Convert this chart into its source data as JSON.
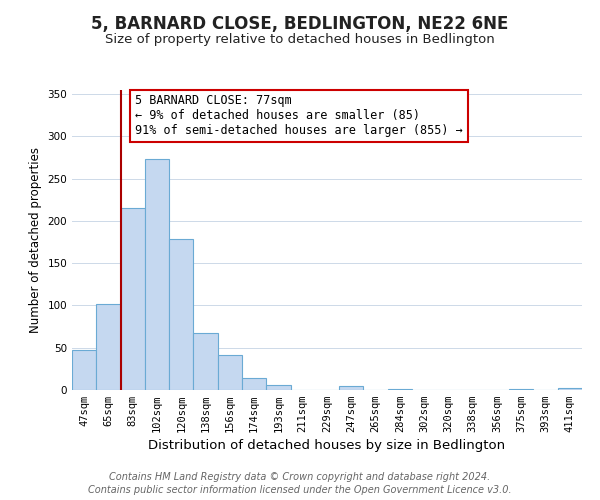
{
  "title": "5, BARNARD CLOSE, BEDLINGTON, NE22 6NE",
  "subtitle": "Size of property relative to detached houses in Bedlington",
  "xlabel": "Distribution of detached houses by size in Bedlington",
  "ylabel": "Number of detached properties",
  "bar_labels": [
    "47sqm",
    "65sqm",
    "83sqm",
    "102sqm",
    "120sqm",
    "138sqm",
    "156sqm",
    "174sqm",
    "193sqm",
    "211sqm",
    "229sqm",
    "247sqm",
    "265sqm",
    "284sqm",
    "302sqm",
    "320sqm",
    "338sqm",
    "356sqm",
    "375sqm",
    "393sqm",
    "411sqm"
  ],
  "bar_values": [
    47,
    102,
    215,
    273,
    179,
    68,
    41,
    14,
    6,
    0,
    0,
    5,
    0,
    1,
    0,
    0,
    0,
    0,
    1,
    0,
    2
  ],
  "bar_color": "#c5d8f0",
  "bar_edge_color": "#6aaad4",
  "vline_color": "#aa0000",
  "annotation_line1": "5 BARNARD CLOSE: 77sqm",
  "annotation_line2": "← 9% of detached houses are smaller (85)",
  "annotation_line3": "91% of semi-detached houses are larger (855) →",
  "annotation_box_color": "#ffffff",
  "annotation_box_edge": "#cc0000",
  "ylim": [
    0,
    355
  ],
  "yticks": [
    0,
    50,
    100,
    150,
    200,
    250,
    300,
    350
  ],
  "footer_line1": "Contains HM Land Registry data © Crown copyright and database right 2024.",
  "footer_line2": "Contains public sector information licensed under the Open Government Licence v3.0.",
  "title_fontsize": 12,
  "subtitle_fontsize": 9.5,
  "xlabel_fontsize": 9.5,
  "ylabel_fontsize": 8.5,
  "tick_fontsize": 7.5,
  "annotation_fontsize": 8.5,
  "footer_fontsize": 7,
  "background_color": "#ffffff",
  "grid_color": "#cdd9e8"
}
